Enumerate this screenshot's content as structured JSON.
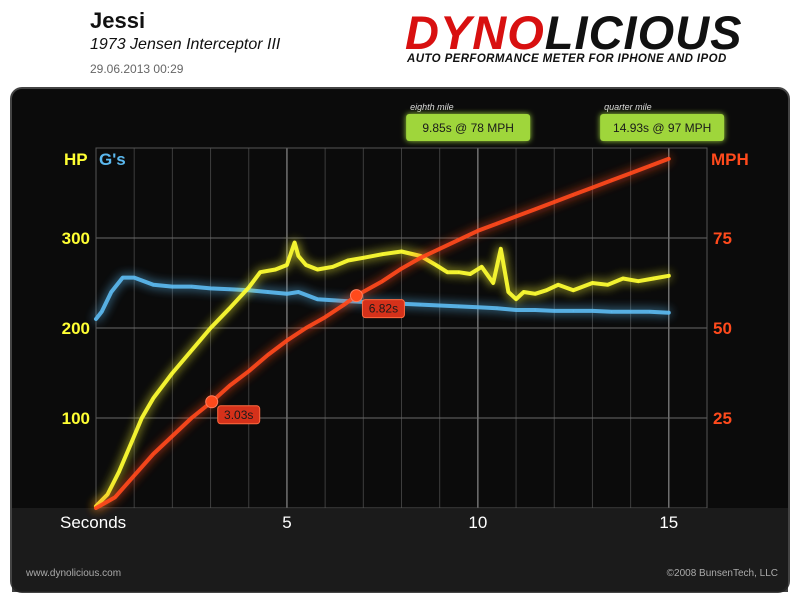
{
  "header": {
    "driver": "Jessi",
    "car": "1973 Jensen Interceptor III",
    "datetime": "29.06.2013 00:29"
  },
  "brand": {
    "logo_part1": "DYNO",
    "logo_part2": "LICIOUS",
    "tagline": "AUTO PERFORMANCE METER FOR IPHONE AND IPOD"
  },
  "footer": {
    "website": "www.dynolicious.com",
    "copyright": "©2008 BunsenTech, LLC"
  },
  "colors": {
    "hp": "#ffff33",
    "gs": "#5bb8ee",
    "mph": "#ff4a1c",
    "marker": "#9fd63a",
    "background": "#0b0b0b"
  },
  "chart_data": {
    "type": "line",
    "xlabel": "Seconds",
    "x_ticks": [
      5,
      10,
      15
    ],
    "xlim": [
      0,
      16
    ],
    "left_axis": {
      "labels": [
        "HP",
        "G's"
      ],
      "ticks": [
        100,
        200,
        300
      ],
      "ylim": [
        0,
        400
      ]
    },
    "right_axis": {
      "label": "MPH",
      "ticks": [
        25,
        50,
        75
      ],
      "ylim": [
        0,
        100
      ]
    },
    "grid": true,
    "series": [
      {
        "name": "HP",
        "axis": "left",
        "x": [
          0,
          0.3,
          0.6,
          0.9,
          1.2,
          1.5,
          2.0,
          2.5,
          3.0,
          3.5,
          4.0,
          4.3,
          4.7,
          5.0,
          5.2,
          5.3,
          5.5,
          5.8,
          6.2,
          6.6,
          7.0,
          7.5,
          8.0,
          8.5,
          8.9,
          9.2,
          9.5,
          9.8,
          10.1,
          10.4,
          10.6,
          10.8,
          11.0,
          11.2,
          11.5,
          11.8,
          12.1,
          12.5,
          13.0,
          13.4,
          13.8,
          14.2,
          14.6,
          15.0
        ],
        "y": [
          2,
          15,
          40,
          70,
          100,
          122,
          150,
          175,
          200,
          222,
          245,
          262,
          265,
          270,
          295,
          280,
          270,
          265,
          268,
          275,
          278,
          282,
          285,
          280,
          270,
          262,
          262,
          260,
          268,
          250,
          288,
          240,
          232,
          240,
          238,
          242,
          248,
          242,
          250,
          248,
          255,
          252,
          255,
          258
        ]
      },
      {
        "name": "G's",
        "axis": "left",
        "x": [
          0,
          0.15,
          0.4,
          0.7,
          1.0,
          1.5,
          2.0,
          2.5,
          3.0,
          3.5,
          4.0,
          4.5,
          5.0,
          5.3,
          5.8,
          6.5,
          7.0,
          7.5,
          8.0,
          8.5,
          9.0,
          9.5,
          10.0,
          10.5,
          11.0,
          11.5,
          12.0,
          12.5,
          13.0,
          13.5,
          14.0,
          14.5,
          15.0
        ],
        "y": [
          210,
          218,
          240,
          256,
          256,
          248,
          246,
          246,
          244,
          243,
          242,
          240,
          238,
          240,
          232,
          230,
          229,
          228,
          227,
          226,
          225,
          224,
          223,
          222,
          220,
          220,
          219,
          219,
          219,
          218,
          218,
          218,
          217
        ]
      },
      {
        "name": "MPH",
        "axis": "right",
        "x": [
          0,
          0.5,
          1.0,
          1.5,
          2.0,
          2.5,
          3.03,
          3.5,
          4.0,
          4.5,
          5.0,
          5.5,
          6.0,
          6.5,
          6.82,
          7.5,
          8.0,
          8.5,
          9.0,
          9.5,
          10.0,
          10.5,
          11.0,
          11.5,
          12.0,
          12.5,
          13.0,
          13.5,
          14.0,
          14.5,
          15.0
        ],
        "y": [
          0,
          3,
          9,
          15,
          20,
          25,
          29.5,
          34,
          38,
          42.5,
          46.5,
          50,
          53,
          56.5,
          59,
          63,
          66.5,
          69.5,
          72,
          74.5,
          77,
          79,
          81,
          83,
          85,
          87,
          89,
          91,
          93,
          95,
          97
        ]
      }
    ],
    "annotations": [
      {
        "x": 3.03,
        "series": "MPH",
        "value": 29.5,
        "label": "3.03s"
      },
      {
        "x": 6.82,
        "series": "MPH",
        "value": 59,
        "label": "6.82s"
      }
    ],
    "markers": [
      {
        "x": 9.85,
        "title": "eighth mile",
        "label": "9.85s @ 78 MPH"
      },
      {
        "x": 14.93,
        "title": "quarter mile",
        "label": "14.93s @ 97 MPH"
      }
    ]
  }
}
